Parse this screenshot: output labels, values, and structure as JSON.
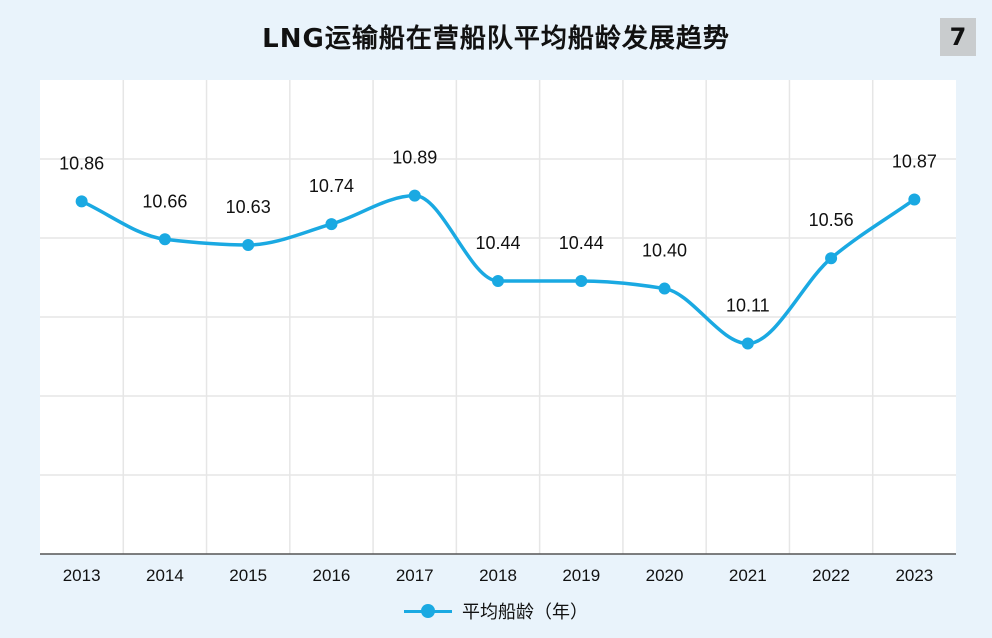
{
  "header": {
    "title": "LNG运输船在营船队平均船龄发展趋势",
    "page_number": "7"
  },
  "legend": {
    "label": "平均船龄（年）"
  },
  "colors": {
    "background": "#e9f3fb",
    "plot_background": "#ffffff",
    "series": "#1aa9e2",
    "grid": "#e6e6e6"
  },
  "chart_data": {
    "type": "line",
    "title": "LNG运输船在营船队平均船龄发展趋势",
    "categories": [
      "2013",
      "2014",
      "2015",
      "2016",
      "2017",
      "2018",
      "2019",
      "2020",
      "2021",
      "2022",
      "2023"
    ],
    "series": [
      {
        "name": "平均船龄（年）",
        "values": [
          10.86,
          10.66,
          10.63,
          10.74,
          10.89,
          10.44,
          10.44,
          10.4,
          10.11,
          10.56,
          10.87
        ],
        "labels": [
          "10.86",
          "10.66",
          "10.63",
          "10.74",
          "10.89",
          "10.44",
          "10.44",
          "10.40",
          "10.11",
          "10.56",
          "10.87"
        ]
      }
    ],
    "ylim": [
      9.0,
      11.5
    ],
    "smooth": true,
    "grid": true,
    "legend_position": "bottom-center",
    "data_labels": true,
    "y_axis_labels_shown": false
  }
}
